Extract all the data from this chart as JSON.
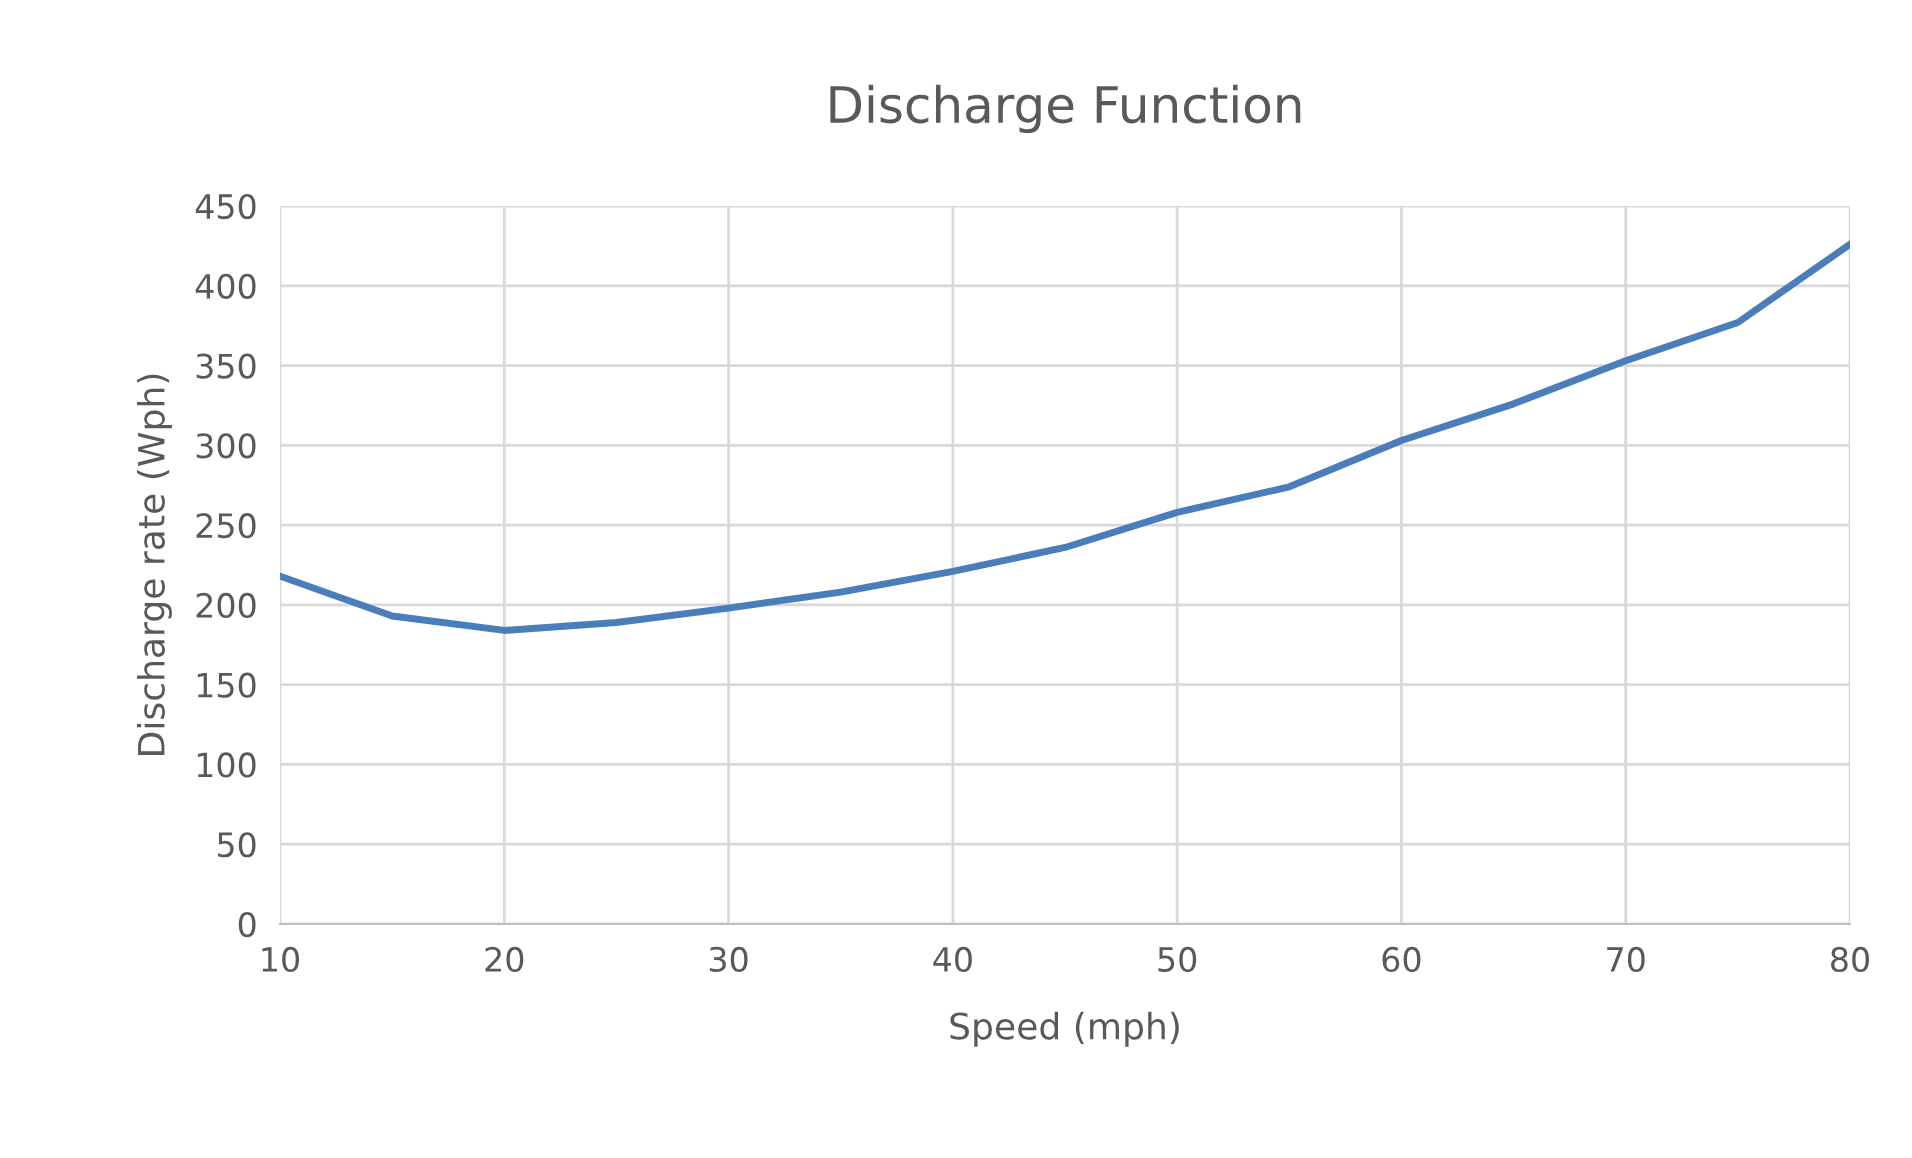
{
  "chart_data": {
    "type": "line",
    "title": "Discharge Function",
    "xlabel": "Speed (mph)",
    "ylabel": "Discharge rate (Wph)",
    "x": [
      10,
      15,
      20,
      25,
      30,
      35,
      40,
      45,
      50,
      55,
      60,
      65,
      70,
      75,
      80
    ],
    "series": [
      {
        "color": "#4a7ebb",
        "values": [
          218,
          193,
          184,
          189,
          198,
          208,
          221,
          236,
          258,
          274,
          303,
          326,
          353,
          377,
          426
        ]
      }
    ],
    "xlim": [
      10,
      80
    ],
    "xticks": [
      10,
      20,
      30,
      40,
      50,
      60,
      70,
      80
    ],
    "ylim": [
      0,
      450
    ],
    "yticks": [
      0,
      50,
      100,
      150,
      200,
      250,
      300,
      350,
      400,
      450
    ],
    "grid": true,
    "marker": "none",
    "line_style": "solid"
  }
}
